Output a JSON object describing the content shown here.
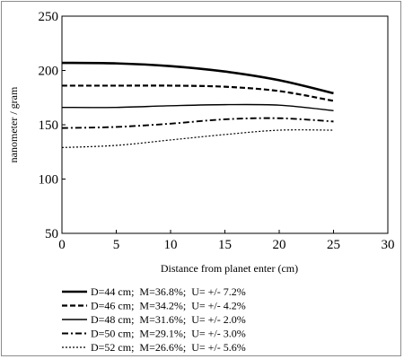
{
  "chart_data": {
    "type": "line",
    "xlabel": "Distance from planet enter (cm)",
    "ylabel": "nanometer / gram",
    "xlim": [
      0,
      30
    ],
    "ylim": [
      50,
      250
    ],
    "xticks": [
      "0",
      "5",
      "10",
      "15",
      "20",
      "25",
      "30"
    ],
    "yticks": [
      "50",
      "100",
      "150",
      "200",
      "250"
    ],
    "grid": false,
    "legend_position": "bottom",
    "series": [
      {
        "name": "D=44 cm;  M=36.8%;  U= +/- 7.2%",
        "x": [
          0,
          5,
          10,
          15,
          20,
          25
        ],
        "y": [
          207,
          206.5,
          204,
          199,
          191,
          179
        ],
        "style": "solid-thick"
      },
      {
        "name": "D=46 cm;  M=34.2%;  U= +/- 4.2%",
        "x": [
          0,
          5,
          10,
          15,
          20,
          25
        ],
        "y": [
          186,
          186,
          186,
          185,
          181,
          172
        ],
        "style": "dashed"
      },
      {
        "name": "D=48 cm;  M=31.6%;  U= +/- 2.0%",
        "x": [
          0,
          5,
          10,
          15,
          20,
          25
        ],
        "y": [
          166,
          166,
          167.5,
          168.5,
          168,
          163
        ],
        "style": "solid-thin"
      },
      {
        "name": "D=50 cm;  M=29.1%;  U= +/- 3.0%",
        "x": [
          0,
          5,
          10,
          15,
          20,
          25
        ],
        "y": [
          147,
          148,
          151,
          155,
          156,
          153
        ],
        "style": "dash-dot"
      },
      {
        "name": "D=52 cm;  M=26.6%;  U= +/- 5.6%",
        "x": [
          0,
          5,
          10,
          15,
          20,
          25
        ],
        "y": [
          129,
          131,
          136,
          141,
          145,
          145
        ],
        "style": "dotted"
      }
    ]
  }
}
